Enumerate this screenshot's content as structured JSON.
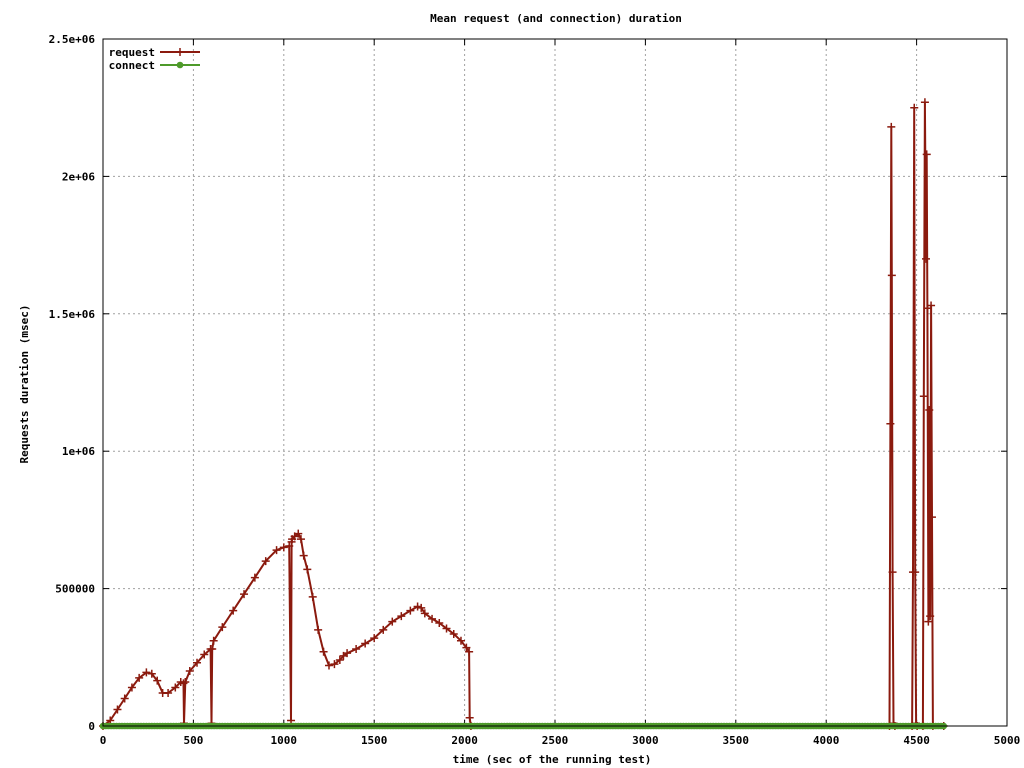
{
  "chart_data": {
    "type": "line",
    "title": "Mean request (and connection) duration",
    "xlabel": "time (sec of the running test)",
    "ylabel": "Requests duration (msec)",
    "xlim": [
      0,
      5000
    ],
    "ylim": [
      0,
      2500000
    ],
    "x_ticks": [
      0,
      500,
      1000,
      1500,
      2000,
      2500,
      3000,
      3500,
      4000,
      4500,
      5000
    ],
    "x_tick_labels": [
      "0",
      "500",
      "1000",
      "1500",
      "2000",
      "2500",
      "3000",
      "3500",
      "4000",
      "4500",
      "5000"
    ],
    "y_ticks": [
      0,
      500000,
      1000000,
      1500000,
      2000000,
      2500000
    ],
    "y_tick_labels": [
      "0",
      "500000",
      "1e+06",
      "1.5e+06",
      "2e+06",
      "2.5e+06"
    ],
    "grid": true,
    "legend_position": "top-left",
    "series": [
      {
        "name": "request",
        "color": "#8b1a0e",
        "marker": "plus",
        "x": [
          0,
          40,
          80,
          120,
          160,
          200,
          240,
          270,
          300,
          330,
          360,
          400,
          430,
          445,
          448,
          455,
          480,
          520,
          560,
          595,
          600,
          604,
          612,
          660,
          720,
          780,
          840,
          900,
          960,
          1000,
          1030,
          1040,
          1043,
          1046,
          1060,
          1080,
          1095,
          1110,
          1130,
          1160,
          1190,
          1220,
          1250,
          1280,
          1310,
          1330,
          1350,
          1400,
          1450,
          1500,
          1550,
          1600,
          1650,
          1700,
          1740,
          1760,
          1780,
          1820,
          1860,
          1900,
          1940,
          1980,
          2010,
          2025,
          2028,
          2035,
          4350,
          4355,
          4360,
          4363,
          4367,
          4372,
          4380,
          4475,
          4480,
          4487,
          4492,
          4497,
          4503,
          4535,
          4540,
          4546,
          4552,
          4556,
          4560,
          4565,
          4570,
          4575,
          4580,
          4585,
          4590,
          4650
        ],
        "y": [
          0,
          20000,
          60000,
          100000,
          140000,
          175000,
          195000,
          190000,
          165000,
          120000,
          120000,
          140000,
          160000,
          155000,
          10000,
          160000,
          200000,
          230000,
          260000,
          280000,
          10000,
          280000,
          310000,
          360000,
          420000,
          480000,
          540000,
          600000,
          640000,
          650000,
          655000,
          20000,
          670000,
          680000,
          690000,
          700000,
          680000,
          620000,
          570000,
          470000,
          350000,
          270000,
          220000,
          225000,
          240000,
          255000,
          265000,
          280000,
          300000,
          320000,
          350000,
          380000,
          400000,
          420000,
          435000,
          430000,
          410000,
          390000,
          375000,
          355000,
          335000,
          310000,
          285000,
          270000,
          30000,
          0,
          0,
          1100000,
          2180000,
          1640000,
          560000,
          10000,
          0,
          0,
          560000,
          2250000,
          560000,
          10000,
          0,
          0,
          1200000,
          2270000,
          1700000,
          2080000,
          1520000,
          380000,
          1150000,
          400000,
          1530000,
          760000,
          0,
          0
        ]
      },
      {
        "name": "connect",
        "color": "#4e9a2a",
        "marker": "star",
        "x_start": 0,
        "x_end": 4650,
        "x_step": 15,
        "y_constant": 0
      }
    ]
  }
}
